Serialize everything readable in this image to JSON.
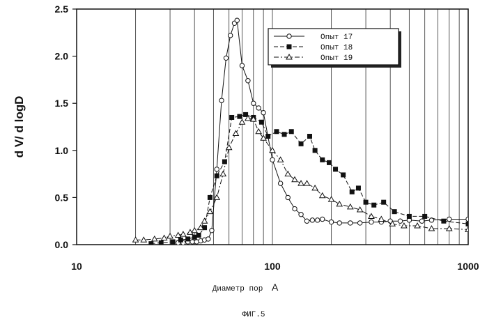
{
  "chart_data": {
    "type": "line",
    "x_scale": "log",
    "xlim": [
      10,
      1000
    ],
    "ylim": [
      0,
      2.5
    ],
    "xlabel_text": "Диаметр пор",
    "xlabel_unit": "A",
    "ylabel": "d V/ d logD",
    "caption": "ФИГ.5",
    "x_ticks": [
      {
        "value": 10,
        "label": "10"
      },
      {
        "value": 100,
        "label": "100"
      },
      {
        "value": 1000,
        "label": "1000"
      }
    ],
    "y_ticks": [
      {
        "value": 0,
        "label": "0.0"
      },
      {
        "value": 0.5,
        "label": "0.5"
      },
      {
        "value": 1.0,
        "label": "1.0"
      },
      {
        "value": 1.5,
        "label": "1.5"
      },
      {
        "value": 2.0,
        "label": "2.0"
      },
      {
        "value": 2.5,
        "label": "2.5"
      }
    ],
    "grid": "vertical log gridlines",
    "legend_position": "top-right",
    "series": [
      {
        "name": "Опыт 17",
        "marker": "circle",
        "line": "solid",
        "x": [
          33,
          35,
          37,
          39,
          41,
          43,
          45,
          47,
          49,
          52,
          55,
          58,
          61,
          64,
          66,
          70,
          75,
          80,
          85,
          90,
          100,
          110,
          120,
          130,
          140,
          150,
          160,
          170,
          180,
          200,
          220,
          250,
          280,
          320,
          360,
          400,
          450,
          500,
          580,
          650,
          800,
          1000
        ],
        "y": [
          0.02,
          0.02,
          0.03,
          0.03,
          0.03,
          0.04,
          0.05,
          0.06,
          0.15,
          0.8,
          1.53,
          1.98,
          2.22,
          2.35,
          2.38,
          1.9,
          1.74,
          1.5,
          1.45,
          1.4,
          0.9,
          0.65,
          0.5,
          0.38,
          0.32,
          0.25,
          0.26,
          0.26,
          0.27,
          0.24,
          0.23,
          0.23,
          0.23,
          0.24,
          0.24,
          0.25,
          0.25,
          0.26,
          0.25,
          0.26,
          0.27,
          0.27
        ]
      },
      {
        "name": "Опыт 18",
        "marker": "square",
        "line": "dash",
        "x": [
          24,
          27,
          31,
          34,
          37,
          40,
          42,
          45,
          48,
          52,
          57,
          62,
          68,
          73,
          80,
          88,
          95,
          105,
          115,
          125,
          140,
          155,
          165,
          180,
          195,
          210,
          230,
          255,
          275,
          300,
          330,
          370,
          420,
          500,
          600,
          750,
          1000
        ],
        "y": [
          0.01,
          0.02,
          0.03,
          0.05,
          0.06,
          0.08,
          0.1,
          0.18,
          0.5,
          0.73,
          0.88,
          1.35,
          1.36,
          1.38,
          1.35,
          1.3,
          1.15,
          1.2,
          1.17,
          1.2,
          1.07,
          1.15,
          1.0,
          0.9,
          0.87,
          0.8,
          0.74,
          0.56,
          0.6,
          0.45,
          0.42,
          0.45,
          0.35,
          0.3,
          0.3,
          0.25,
          0.22
        ]
      },
      {
        "name": "Опыт 19",
        "marker": "triangle",
        "line": "dashdot",
        "x": [
          20,
          22,
          25,
          28,
          30,
          33,
          35,
          38,
          40,
          43,
          45,
          48,
          52,
          56,
          60,
          65,
          70,
          75,
          80,
          85,
          90,
          100,
          110,
          120,
          130,
          140,
          150,
          165,
          180,
          200,
          220,
          250,
          280,
          320,
          360,
          410,
          470,
          550,
          650,
          800,
          1000
        ],
        "y": [
          0.05,
          0.05,
          0.06,
          0.07,
          0.09,
          0.1,
          0.11,
          0.13,
          0.15,
          0.18,
          0.25,
          0.35,
          0.5,
          0.75,
          1.03,
          1.18,
          1.3,
          1.34,
          1.33,
          1.2,
          1.13,
          1.0,
          0.9,
          0.75,
          0.69,
          0.65,
          0.65,
          0.6,
          0.52,
          0.48,
          0.43,
          0.4,
          0.37,
          0.3,
          0.27,
          0.22,
          0.2,
          0.2,
          0.17,
          0.17,
          0.16
        ]
      }
    ]
  }
}
